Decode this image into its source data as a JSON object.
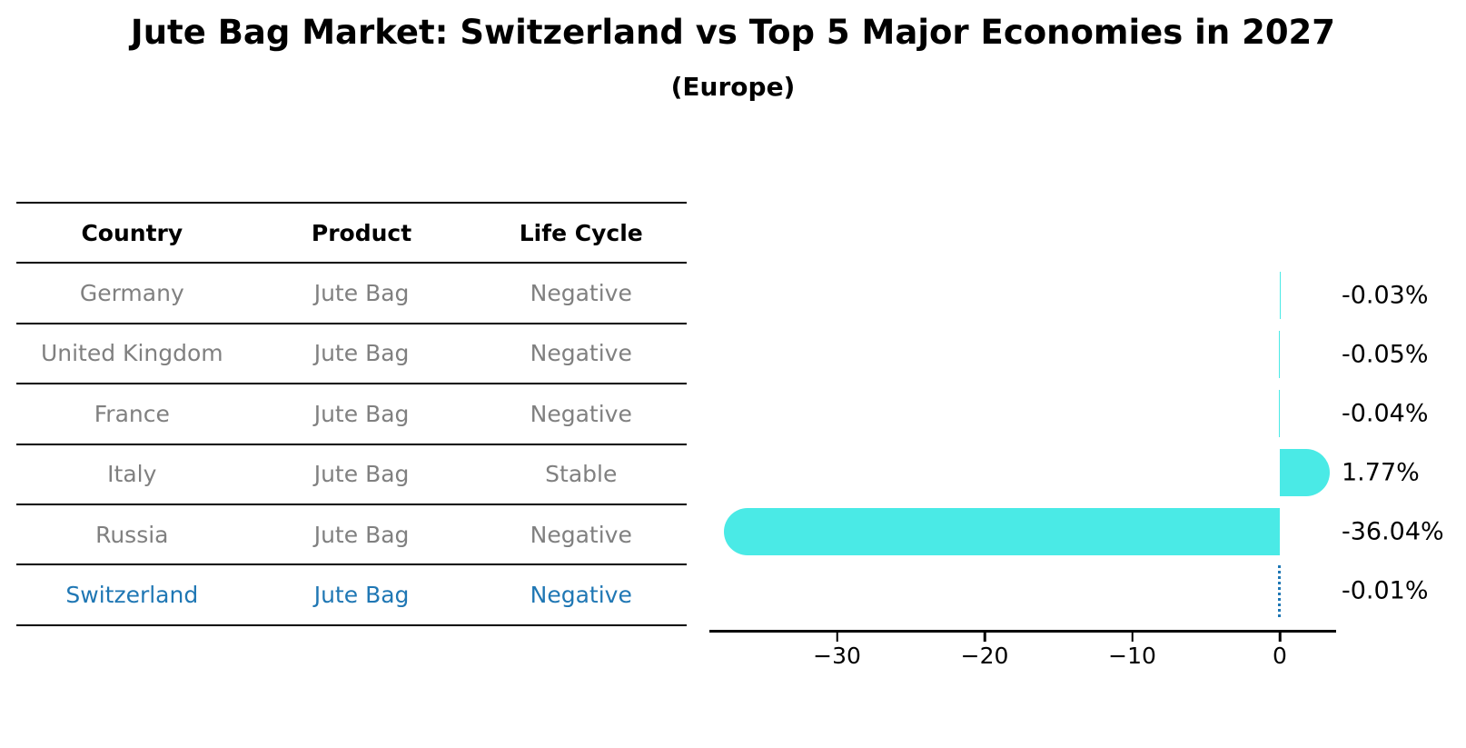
{
  "title": "Jute Bag Market: Switzerland vs Top 5 Major Economies in 2027",
  "subtitle": "(Europe)",
  "table": {
    "headers": [
      "Country",
      "Product",
      "Life Cycle"
    ],
    "rows": [
      {
        "country": "Germany",
        "product": "Jute Bag",
        "life_cycle": "Negative"
      },
      {
        "country": "United Kingdom",
        "product": "Jute Bag",
        "life_cycle": "Negative"
      },
      {
        "country": "France",
        "product": "Jute Bag",
        "life_cycle": "Negative"
      },
      {
        "country": "Italy",
        "product": "Jute Bag",
        "life_cycle": "Stable"
      },
      {
        "country": "Russia",
        "product": "Jute Bag",
        "life_cycle": "Negative"
      },
      {
        "country": "Switzerland",
        "product": "Jute Bag",
        "life_cycle": "Negative"
      }
    ],
    "highlighted_row": "Switzerland"
  },
  "chart_data": {
    "type": "bar",
    "orientation": "horizontal",
    "categories": [
      "Germany",
      "United Kingdom",
      "France",
      "Italy",
      "Russia",
      "Switzerland"
    ],
    "values": [
      -0.03,
      -0.05,
      -0.04,
      1.77,
      -36.04,
      -0.01
    ],
    "value_labels": [
      "-0.03%",
      "-0.05%",
      "-0.04%",
      "1.77%",
      "-36.04%",
      "-0.01%"
    ],
    "unit": "%",
    "title": "",
    "xlabel": "",
    "ylabel": "",
    "x_ticks": [
      {
        "value": -30,
        "label": "−30"
      },
      {
        "value": -20,
        "label": "−20"
      },
      {
        "value": -10,
        "label": "−10"
      },
      {
        "value": 0,
        "label": "0"
      }
    ],
    "xlim": [
      -38.6,
      3.8
    ],
    "grid": false,
    "legend": false,
    "bar_color": "#4AEAE6",
    "highlight_color": "#1F77B4",
    "highlight_category": "Switzerland",
    "highlight_marker": "dotted-zero-line"
  },
  "colors": {
    "background": "#FFFFFF",
    "bar": "#4AEAE6",
    "highlight_blue": "#1F77B4",
    "muted_text": "#808080",
    "text": "#000000"
  }
}
